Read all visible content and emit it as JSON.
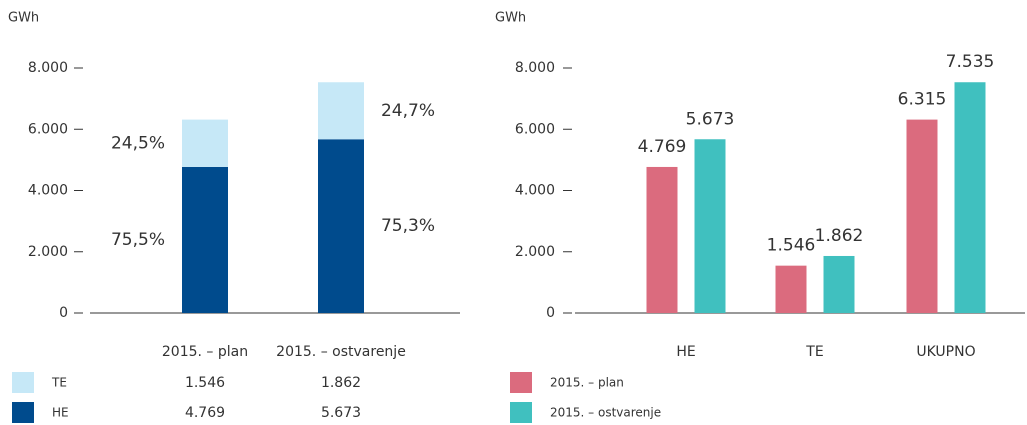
{
  "chart_data": [
    {
      "type": "stacked_bar",
      "y_label": "GWh",
      "categories": [
        "2015. – plan",
        "2015. – ostvarenje"
      ],
      "ylim": [
        0,
        8000
      ],
      "yticks": [
        0,
        {
          "value": 2000,
          "label": "2.000"
        },
        {
          "value": 4000,
          "label": "4.000"
        },
        {
          "value": 6000,
          "label": "6.000"
        },
        {
          "value": 8000,
          "label": "8.000"
        }
      ],
      "series": [
        {
          "name": "HE",
          "color": "#004b8d",
          "values": [
            4769,
            5673
          ],
          "value_labels": [
            "4.769",
            "5.673"
          ],
          "percent_labels": [
            "75,5%",
            "75,3%"
          ]
        },
        {
          "name": "TE",
          "color": "#c6e8f7",
          "values": [
            1546,
            1862
          ],
          "value_labels": [
            "1.546",
            "1.862"
          ],
          "percent_labels": [
            "24,5%",
            "24,7%"
          ]
        }
      ]
    },
    {
      "type": "grouped_bar",
      "y_label": "GWh",
      "categories": [
        "HE",
        "TE",
        "UKUPNO"
      ],
      "ylim": [
        0,
        8000
      ],
      "yticks": [
        0,
        {
          "value": 2000,
          "label": "2.000"
        },
        {
          "value": 4000,
          "label": "4.000"
        },
        {
          "value": 6000,
          "label": "6.000"
        },
        {
          "value": 8000,
          "label": "8.000"
        }
      ],
      "series": [
        {
          "name": "2015. – plan",
          "color": "#db6b7e",
          "values": [
            4769,
            1546,
            6315
          ],
          "value_labels": [
            "4.769",
            "1.546",
            "6.315"
          ]
        },
        {
          "name": "2015. – ostvarenje",
          "color": "#40c0bf",
          "values": [
            5673,
            1862,
            7535
          ],
          "value_labels": [
            "5.673",
            "1.862",
            "7.535"
          ]
        }
      ]
    }
  ]
}
